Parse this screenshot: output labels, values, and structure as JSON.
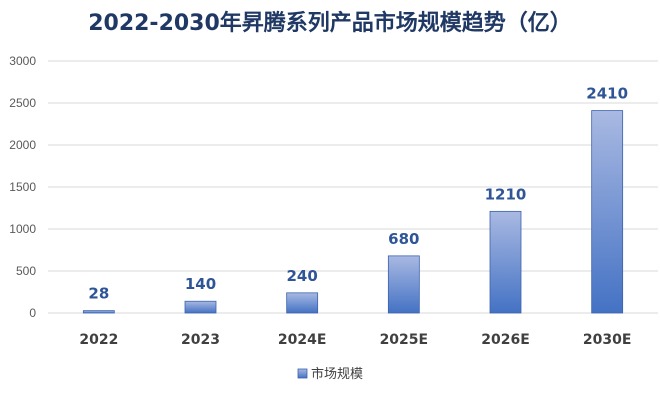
{
  "chart_data": {
    "type": "bar",
    "title": "2022-2030年昇腾系列产品市场规模趋势（亿）",
    "categories": [
      "2022",
      "2023",
      "2024E",
      "2025E",
      "2026E",
      "2030E"
    ],
    "series": [
      {
        "name": "市场规模",
        "values": [
          28,
          140,
          240,
          680,
          1210,
          2410
        ]
      }
    ],
    "data_labels": [
      "28",
      "140",
      "240",
      "680",
      "1210",
      "2410"
    ],
    "yticks": [
      0,
      500,
      1000,
      1500,
      2000,
      2500,
      3000
    ],
    "ylim": [
      0,
      3000
    ],
    "grid": true,
    "legend": "bottom-center",
    "xlabel": "",
    "ylabel": ""
  },
  "colors": {
    "bar_top": "#a9b9e2",
    "bar_bottom": "#4472c4",
    "bar_stroke": "#3a63ad",
    "title": "#1f3864",
    "label": "#2f5597"
  }
}
